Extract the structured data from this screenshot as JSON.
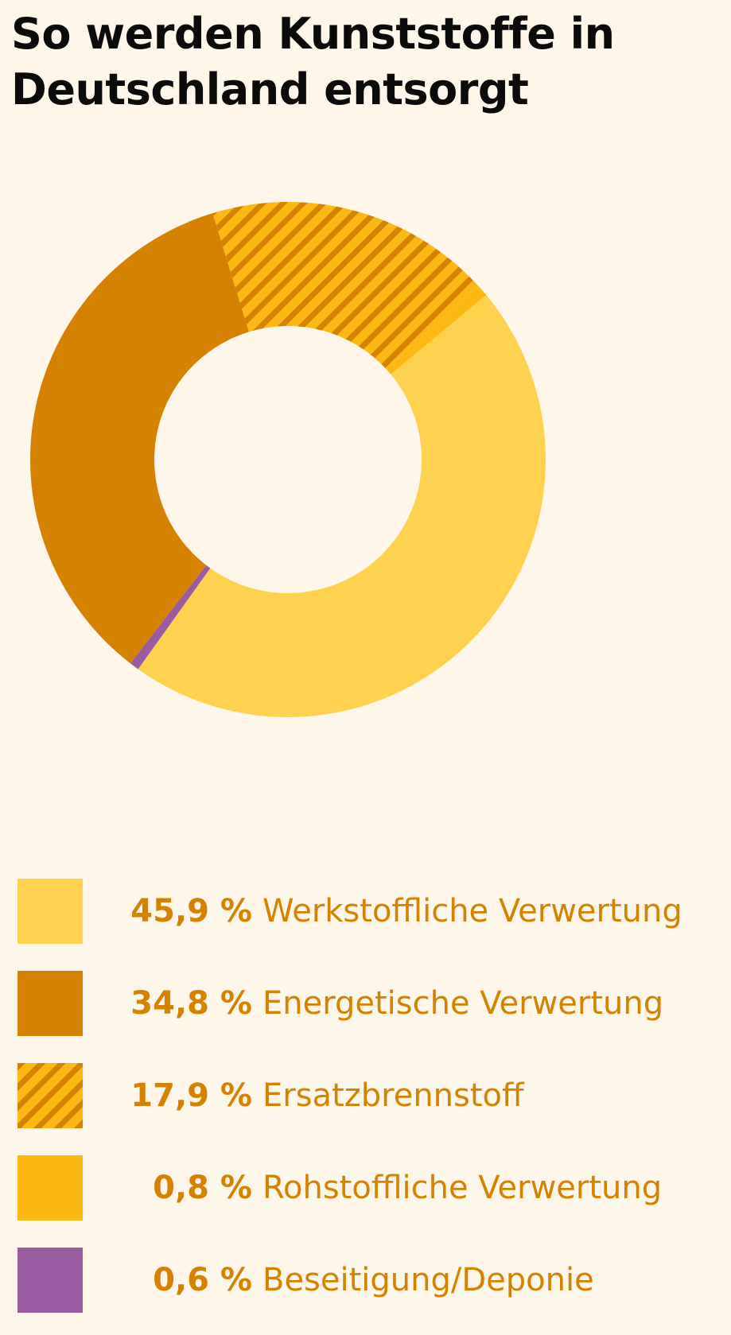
{
  "title": {
    "line1": "So werden Kunststoffe in",
    "line2": "Deutschland entsorgt"
  },
  "chart_data": {
    "type": "pie",
    "title": "So werden Kunststoffe in Deutschland entsorgt",
    "donut": true,
    "unit": "%",
    "legend_position": "bottom",
    "series": [
      {
        "name": "Werkstoffliche Verwertung",
        "value": 45.9,
        "label": "45,9 %",
        "color": "#fed24f",
        "pattern": "solid"
      },
      {
        "name": "Energetische Verwertung",
        "value": 34.8,
        "label": "34,8 %",
        "color": "#d58200",
        "pattern": "solid"
      },
      {
        "name": "Ersatzbrennstoff",
        "value": 17.9,
        "label": "17,9 %",
        "color": "#fdb913",
        "pattern": "hatched",
        "hatch_color": "#d58200"
      },
      {
        "name": "Rohstoffliche Verwertung",
        "value": 0.8,
        "label": "0,8 %",
        "color": "#fdb913",
        "pattern": "solid"
      },
      {
        "name": "Beseitigung/Deponie",
        "value": 0.6,
        "label": "0,6 %",
        "color": "#9b5ba0",
        "pattern": "solid"
      }
    ],
    "slice_order_clockwise_from_top": [
      "Ersatzbrennstoff",
      "Rohstoffliche Verwertung",
      "Werkstoffliche Verwertung",
      "Beseitigung/Deponie",
      "Energetische Verwertung"
    ]
  }
}
